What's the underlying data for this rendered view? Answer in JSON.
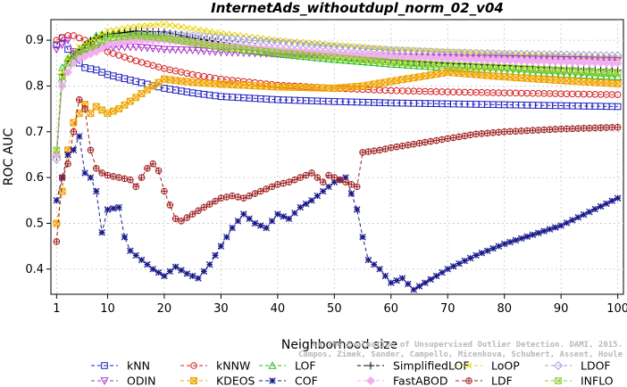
{
  "chart_data": {
    "type": "line",
    "title": "InternetAds_withoutdupl_norm_02_v04",
    "xlabel": "Neighborhood size",
    "ylabel": "ROC AUC",
    "xlim": [
      0,
      101
    ],
    "ylim": [
      0.345,
      0.945
    ],
    "x_ticks": [
      1,
      10,
      20,
      30,
      40,
      50,
      60,
      70,
      80,
      90,
      100
    ],
    "y_ticks": [
      0.4,
      0.5,
      0.6,
      0.7,
      0.8,
      0.9
    ],
    "grid": true,
    "legend_position": "bottom",
    "watermark": [
      "Campos, Zimek, Sander, Campello, Micenkova, Schubert, Assent, Houle",
      "On the Evaluation of Unsupervised Outlier Detection. DAMI, 2015."
    ],
    "series": [
      {
        "name": "kNN",
        "color": "#1f1fbf",
        "marker": "square",
        "points": [
          [
            1,
            0.89
          ],
          [
            2,
            0.905
          ],
          [
            3,
            0.88
          ],
          [
            4,
            0.86
          ],
          [
            5,
            0.85
          ],
          [
            6,
            0.84
          ],
          [
            8,
            0.835
          ],
          [
            10,
            0.825
          ],
          [
            15,
            0.81
          ],
          [
            20,
            0.795
          ],
          [
            25,
            0.785
          ],
          [
            30,
            0.777
          ],
          [
            40,
            0.77
          ],
          [
            50,
            0.766
          ],
          [
            60,
            0.763
          ],
          [
            70,
            0.761
          ],
          [
            80,
            0.759
          ],
          [
            90,
            0.757
          ],
          [
            100,
            0.755
          ]
        ]
      },
      {
        "name": "kNNW",
        "color": "#d62020",
        "marker": "circle",
        "points": [
          [
            1,
            0.9
          ],
          [
            2,
            0.906
          ],
          [
            3,
            0.91
          ],
          [
            4,
            0.91
          ],
          [
            5,
            0.905
          ],
          [
            6,
            0.9
          ],
          [
            8,
            0.89
          ],
          [
            10,
            0.875
          ],
          [
            15,
            0.855
          ],
          [
            20,
            0.838
          ],
          [
            25,
            0.825
          ],
          [
            30,
            0.815
          ],
          [
            40,
            0.802
          ],
          [
            50,
            0.795
          ],
          [
            60,
            0.79
          ],
          [
            70,
            0.787
          ],
          [
            80,
            0.785
          ],
          [
            90,
            0.783
          ],
          [
            100,
            0.781
          ]
        ]
      },
      {
        "name": "LOF",
        "color": "#22bb22",
        "marker": "triangle",
        "points": [
          [
            1,
            0.655
          ],
          [
            2,
            0.84
          ],
          [
            3,
            0.86
          ],
          [
            4,
            0.87
          ],
          [
            5,
            0.88
          ],
          [
            6,
            0.89
          ],
          [
            8,
            0.91
          ],
          [
            10,
            0.915
          ],
          [
            15,
            0.915
          ],
          [
            20,
            0.905
          ],
          [
            25,
            0.895
          ],
          [
            30,
            0.885
          ],
          [
            40,
            0.87
          ],
          [
            50,
            0.858
          ],
          [
            60,
            0.848
          ],
          [
            70,
            0.84
          ],
          [
            80,
            0.833
          ],
          [
            90,
            0.826
          ],
          [
            100,
            0.82
          ]
        ]
      },
      {
        "name": "SimplifiedLOF",
        "color": "#000000",
        "marker": "plus",
        "points": [
          [
            1,
            0.645
          ],
          [
            2,
            0.825
          ],
          [
            3,
            0.855
          ],
          [
            4,
            0.87
          ],
          [
            5,
            0.88
          ],
          [
            6,
            0.89
          ],
          [
            8,
            0.905
          ],
          [
            10,
            0.912
          ],
          [
            15,
            0.92
          ],
          [
            20,
            0.918
          ],
          [
            25,
            0.905
          ],
          [
            30,
            0.895
          ],
          [
            40,
            0.88
          ],
          [
            50,
            0.867
          ],
          [
            60,
            0.857
          ],
          [
            70,
            0.85
          ],
          [
            80,
            0.845
          ],
          [
            90,
            0.84
          ],
          [
            100,
            0.835
          ]
        ]
      },
      {
        "name": "LoOP",
        "color": "#e8d400",
        "marker": "x",
        "points": [
          [
            1,
            0.65
          ],
          [
            2,
            0.83
          ],
          [
            3,
            0.86
          ],
          [
            4,
            0.875
          ],
          [
            5,
            0.885
          ],
          [
            8,
            0.905
          ],
          [
            10,
            0.92
          ],
          [
            15,
            0.93
          ],
          [
            20,
            0.935
          ],
          [
            25,
            0.925
          ],
          [
            30,
            0.915
          ],
          [
            40,
            0.9
          ],
          [
            50,
            0.89
          ],
          [
            60,
            0.88
          ],
          [
            70,
            0.875
          ],
          [
            80,
            0.87
          ],
          [
            90,
            0.866
          ],
          [
            100,
            0.862
          ]
        ]
      },
      {
        "name": "LDOF",
        "color": "#9c9cd8",
        "marker": "diamond",
        "points": [
          [
            1,
            0.64
          ],
          [
            2,
            0.81
          ],
          [
            3,
            0.84
          ],
          [
            4,
            0.855
          ],
          [
            5,
            0.865
          ],
          [
            8,
            0.88
          ],
          [
            10,
            0.895
          ],
          [
            15,
            0.91
          ],
          [
            20,
            0.915
          ],
          [
            25,
            0.91
          ],
          [
            30,
            0.905
          ],
          [
            40,
            0.895
          ],
          [
            50,
            0.885
          ],
          [
            60,
            0.878
          ],
          [
            70,
            0.873
          ],
          [
            80,
            0.87
          ],
          [
            90,
            0.868
          ],
          [
            100,
            0.866
          ]
        ]
      },
      {
        "name": "ODIN",
        "color": "#aa33cc",
        "marker": "triangle-down",
        "points": [
          [
            1,
            0.88
          ],
          [
            2,
            0.89
          ],
          [
            3,
            0.9
          ],
          [
            4,
            0.875
          ],
          [
            5,
            0.87
          ],
          [
            6,
            0.875
          ],
          [
            8,
            0.882
          ],
          [
            10,
            0.885
          ],
          [
            15,
            0.885
          ],
          [
            20,
            0.88
          ],
          [
            25,
            0.878
          ],
          [
            30,
            0.874
          ],
          [
            40,
            0.87
          ],
          [
            50,
            0.867
          ],
          [
            60,
            0.864
          ],
          [
            70,
            0.862
          ],
          [
            80,
            0.86
          ],
          [
            90,
            0.858
          ],
          [
            100,
            0.856
          ]
        ]
      },
      {
        "name": "KDEOS",
        "color": "#f0a400",
        "marker": "hash",
        "points": [
          [
            1,
            0.5
          ],
          [
            2,
            0.57
          ],
          [
            3,
            0.66
          ],
          [
            4,
            0.72
          ],
          [
            5,
            0.74
          ],
          [
            6,
            0.76
          ],
          [
            7,
            0.74
          ],
          [
            8,
            0.755
          ],
          [
            10,
            0.74
          ],
          [
            12,
            0.75
          ],
          [
            15,
            0.775
          ],
          [
            18,
            0.8
          ],
          [
            20,
            0.815
          ],
          [
            25,
            0.808
          ],
          [
            30,
            0.804
          ],
          [
            40,
            0.798
          ],
          [
            50,
            0.795
          ],
          [
            55,
            0.8
          ],
          [
            60,
            0.81
          ],
          [
            65,
            0.82
          ],
          [
            70,
            0.83
          ],
          [
            75,
            0.825
          ],
          [
            80,
            0.82
          ],
          [
            90,
            0.812
          ],
          [
            100,
            0.805
          ]
        ]
      },
      {
        "name": "COF",
        "color": "#1a1a8c",
        "marker": "asterisk",
        "points": [
          [
            1,
            0.55
          ],
          [
            2,
            0.6
          ],
          [
            3,
            0.65
          ],
          [
            4,
            0.66
          ],
          [
            5,
            0.69
          ],
          [
            6,
            0.61
          ],
          [
            7,
            0.6
          ],
          [
            8,
            0.57
          ],
          [
            9,
            0.48
          ],
          [
            10,
            0.53
          ],
          [
            12,
            0.535
          ],
          [
            13,
            0.47
          ],
          [
            14,
            0.44
          ],
          [
            16,
            0.42
          ],
          [
            18,
            0.4
          ],
          [
            20,
            0.385
          ],
          [
            22,
            0.405
          ],
          [
            24,
            0.39
          ],
          [
            26,
            0.38
          ],
          [
            28,
            0.41
          ],
          [
            30,
            0.45
          ],
          [
            32,
            0.49
          ],
          [
            34,
            0.52
          ],
          [
            36,
            0.5
          ],
          [
            38,
            0.49
          ],
          [
            40,
            0.52
          ],
          [
            42,
            0.51
          ],
          [
            44,
            0.535
          ],
          [
            46,
            0.55
          ],
          [
            48,
            0.57
          ],
          [
            50,
            0.59
          ],
          [
            52,
            0.6
          ],
          [
            54,
            0.53
          ],
          [
            55,
            0.47
          ],
          [
            56,
            0.42
          ],
          [
            58,
            0.4
          ],
          [
            60,
            0.37
          ],
          [
            62,
            0.38
          ],
          [
            64,
            0.355
          ],
          [
            66,
            0.37
          ],
          [
            68,
            0.385
          ],
          [
            70,
            0.4
          ],
          [
            75,
            0.43
          ],
          [
            80,
            0.455
          ],
          [
            85,
            0.475
          ],
          [
            90,
            0.495
          ],
          [
            95,
            0.525
          ],
          [
            100,
            0.555
          ]
        ]
      },
      {
        "name": "FastABOD",
        "color": "#f0b0f0",
        "marker": "diamond-filled",
        "points": [
          [
            1,
            0.65
          ],
          [
            2,
            0.8
          ],
          [
            3,
            0.83
          ],
          [
            4,
            0.85
          ],
          [
            5,
            0.86
          ],
          [
            8,
            0.875
          ],
          [
            10,
            0.89
          ],
          [
            15,
            0.9
          ],
          [
            20,
            0.9
          ],
          [
            25,
            0.895
          ],
          [
            30,
            0.89
          ],
          [
            40,
            0.88
          ],
          [
            50,
            0.872
          ],
          [
            60,
            0.865
          ],
          [
            70,
            0.86
          ],
          [
            80,
            0.856
          ],
          [
            90,
            0.853
          ],
          [
            100,
            0.85
          ]
        ]
      },
      {
        "name": "LDF",
        "color": "#a02020",
        "marker": "circle-plus",
        "points": [
          [
            1,
            0.46
          ],
          [
            2,
            0.6
          ],
          [
            3,
            0.63
          ],
          [
            4,
            0.7
          ],
          [
            5,
            0.77
          ],
          [
            6,
            0.75
          ],
          [
            7,
            0.66
          ],
          [
            8,
            0.62
          ],
          [
            9,
            0.61
          ],
          [
            10,
            0.605
          ],
          [
            12,
            0.6
          ],
          [
            14,
            0.595
          ],
          [
            15,
            0.58
          ],
          [
            16,
            0.6
          ],
          [
            17,
            0.62
          ],
          [
            18,
            0.63
          ],
          [
            19,
            0.615
          ],
          [
            20,
            0.57
          ],
          [
            21,
            0.54
          ],
          [
            22,
            0.51
          ],
          [
            23,
            0.505
          ],
          [
            25,
            0.52
          ],
          [
            27,
            0.535
          ],
          [
            30,
            0.555
          ],
          [
            32,
            0.56
          ],
          [
            34,
            0.555
          ],
          [
            36,
            0.565
          ],
          [
            38,
            0.575
          ],
          [
            40,
            0.585
          ],
          [
            42,
            0.59
          ],
          [
            44,
            0.6
          ],
          [
            46,
            0.61
          ],
          [
            47,
            0.6
          ],
          [
            48,
            0.59
          ],
          [
            49,
            0.605
          ],
          [
            51,
            0.595
          ],
          [
            53,
            0.585
          ],
          [
            54,
            0.58
          ],
          [
            55,
            0.655
          ],
          [
            58,
            0.66
          ],
          [
            60,
            0.665
          ],
          [
            65,
            0.675
          ],
          [
            70,
            0.685
          ],
          [
            75,
            0.695
          ],
          [
            80,
            0.7
          ],
          [
            85,
            0.703
          ],
          [
            90,
            0.706
          ],
          [
            95,
            0.708
          ],
          [
            100,
            0.71
          ]
        ]
      },
      {
        "name": "INFLO",
        "color": "#88cc22",
        "marker": "square-x",
        "points": [
          [
            1,
            0.66
          ],
          [
            2,
            0.82
          ],
          [
            3,
            0.85
          ],
          [
            4,
            0.865
          ],
          [
            5,
            0.875
          ],
          [
            8,
            0.89
          ],
          [
            10,
            0.905
          ],
          [
            15,
            0.91
          ],
          [
            20,
            0.905
          ],
          [
            25,
            0.895
          ],
          [
            30,
            0.885
          ],
          [
            40,
            0.873
          ],
          [
            50,
            0.862
          ],
          [
            60,
            0.852
          ],
          [
            70,
            0.845
          ],
          [
            80,
            0.84
          ],
          [
            90,
            0.834
          ],
          [
            100,
            0.828
          ]
        ]
      }
    ]
  }
}
